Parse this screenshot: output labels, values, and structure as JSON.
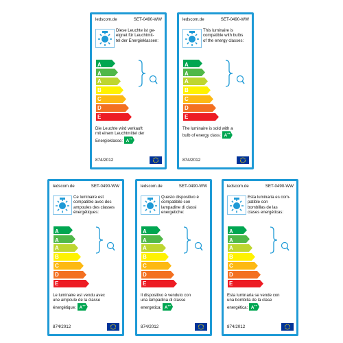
{
  "labels": [
    {
      "brand": "ledscom.de",
      "sku": "SET-0490-WW",
      "compat": "Diese Leuchte ist ge-\neignet für Leuchtmit-\ntel der Energieklassen:",
      "sold_text": "Die Leuchte wird verkauft\nmit einem Leuchtmittel der\nEnergieklasse:",
      "class": "A",
      "class_sup": "++",
      "regulation": "874/2012"
    },
    {
      "brand": "ledscom.de",
      "sku": "SET-0490-WW",
      "compat": "This luminaire is\ncompatible with bulbs\nof the energy classes:",
      "sold_text": "The luminaire is sold with a\nbulb of energy class:",
      "class": "A",
      "class_sup": "++",
      "regulation": "874/2012"
    },
    {
      "brand": "ledscom.de",
      "sku": "SET-0490-WW",
      "compat": "Ce luminaire est\ncompatible avec des\nampoules des classes\nénergétiques:",
      "sold_text": "Le luminaire est vendu avec\nune ampoule de la classe\nénergétique:",
      "class": "A",
      "class_sup": "++",
      "regulation": "874/2012"
    },
    {
      "brand": "ledscom.de",
      "sku": "SET-0490-WW",
      "compat": "Questo dispositivo è\ncompatibile con\nlampadine di classi\nenergetiche:",
      "sold_text": "Il dispositivo è venduto con\nuna lampadina di classe\nenergetica:",
      "class": "A",
      "class_sup": "++",
      "regulation": "874/2012"
    },
    {
      "brand": "ledscom.de",
      "sku": "SET-0490-WW",
      "compat": "Esta luminaria es com-\npatible con\nbombillas de las\nclases energéticas:",
      "sold_text": "Esta luminaria se vende con\nuna bombilla de la clase\nenergética:",
      "class": "A",
      "class_sup": "++",
      "regulation": "874/2012"
    }
  ],
  "scale": [
    {
      "letter": "A",
      "sup": "++",
      "color": "#00a651"
    },
    {
      "letter": "A",
      "sup": "+",
      "color": "#50b848"
    },
    {
      "letter": "A",
      "sup": "",
      "color": "#bed630"
    },
    {
      "letter": "B",
      "sup": "",
      "color": "#fff200"
    },
    {
      "letter": "C",
      "sup": "",
      "color": "#fdb913"
    },
    {
      "letter": "D",
      "sup": "",
      "color": "#f37021"
    },
    {
      "letter": "E",
      "sup": "",
      "color": "#ed1c24"
    }
  ],
  "colors": {
    "frame": "#1e9ad6",
    "eu_flag": "#003399"
  }
}
